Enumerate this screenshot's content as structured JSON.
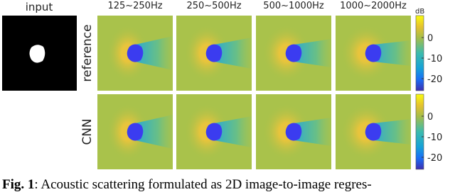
{
  "figure": {
    "input_title": "input",
    "columns": [
      "125~250Hz",
      "250~500Hz",
      "500~1000Hz",
      "1000~2000Hz"
    ],
    "rows": [
      "reference",
      "CNN"
    ],
    "colorbar_unit": "dB",
    "colorbars": [
      {
        "ticks": [
          0,
          -10,
          -20
        ]
      },
      {
        "ticks": [
          0,
          -10,
          -20
        ]
      }
    ]
  },
  "caption": {
    "label": "Fig. 1",
    "text": ": Acoustic scattering formulated as 2D image-to-image regres-"
  }
}
